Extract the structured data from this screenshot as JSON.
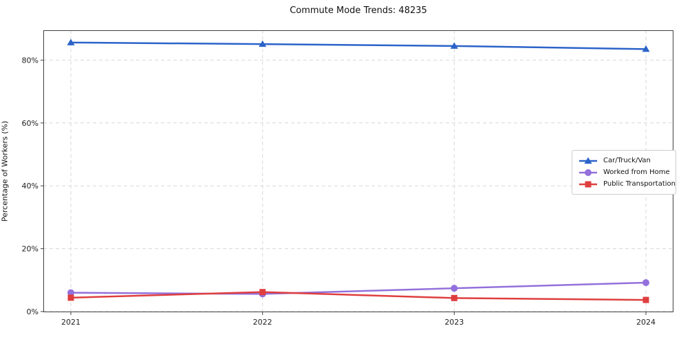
{
  "title": "Commute Mode Trends: 48235",
  "chart_data": {
    "type": "line",
    "title": "Commute Mode Trends: 48235",
    "xlabel": "",
    "ylabel": "Percentage of Workers (%)",
    "categories": [
      "2021",
      "2022",
      "2023",
      "2024"
    ],
    "series": [
      {
        "name": "Car/Truck/Van",
        "color": "#2b63c9",
        "marker": "triangle",
        "values": [
          85.6,
          85.1,
          84.5,
          83.5
        ]
      },
      {
        "name": "Worked from Home",
        "color": "#9370db",
        "marker": "circle",
        "values": [
          6.0,
          5.6,
          7.4,
          9.2
        ]
      },
      {
        "name": "Public Transportation",
        "color": "#df3e3e",
        "marker": "square",
        "values": [
          4.4,
          6.2,
          4.3,
          3.7
        ]
      }
    ],
    "y_ticks": [
      0,
      20,
      40,
      60,
      80
    ],
    "y_tick_labels": [
      "0%",
      "20%",
      "40%",
      "60%",
      "80%"
    ],
    "ylim": [
      0,
      89.5
    ],
    "grid": true,
    "grid_style": "dashed",
    "legend_position": "center-right",
    "colors": {
      "grid": "#d7d7d7",
      "spine": "#3f3f3f",
      "tick_text": "#1d1d1d"
    }
  }
}
